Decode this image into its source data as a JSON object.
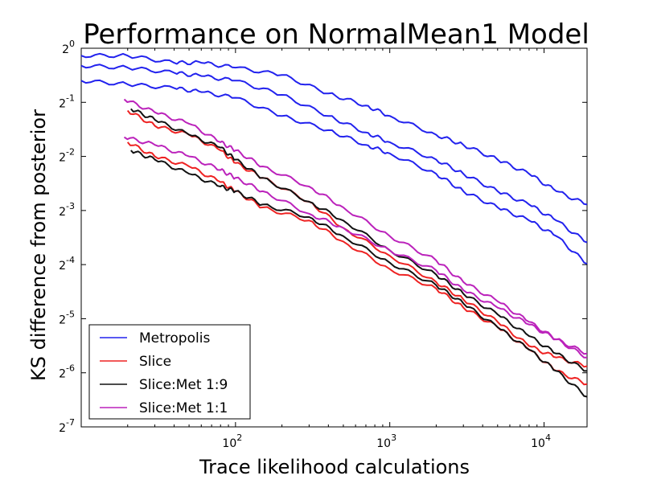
{
  "chart_data": {
    "type": "line",
    "title": "Performance on NormalMean1 Model",
    "xlabel": "Trace likelihood calculations",
    "ylabel": "KS difference from posterior",
    "xscale": "log10",
    "yscale": "log2",
    "xlim": [
      10,
      19000
    ],
    "ylim": [
      0.0078125,
      1
    ],
    "grid": false,
    "legend_position": "lower-left",
    "x_ticks": [
      {
        "base": "10",
        "exp": "2"
      },
      {
        "base": "10",
        "exp": "3"
      },
      {
        "base": "10",
        "exp": "4"
      }
    ],
    "y_ticks": [
      {
        "base": "2",
        "exp": "0"
      },
      {
        "base": "2",
        "exp": "-1"
      },
      {
        "base": "2",
        "exp": "-2"
      },
      {
        "base": "2",
        "exp": "-3"
      },
      {
        "base": "2",
        "exp": "-4"
      },
      {
        "base": "2",
        "exp": "-5"
      },
      {
        "base": "2",
        "exp": "-6"
      },
      {
        "base": "2",
        "exp": "-7"
      }
    ],
    "legend": [
      {
        "name": "Metropolis",
        "color": "#2222ee"
      },
      {
        "name": "Slice",
        "color": "#ee2222"
      },
      {
        "name": "Slice:Met 1:9",
        "color": "#111111"
      },
      {
        "name": "Slice:Met 1:1",
        "color": "#bb22bb"
      }
    ],
    "series": [
      {
        "name": "Metropolis",
        "color": "#2222ee",
        "x": [
          10,
          20,
          40,
          60,
          100,
          200,
          400,
          700,
          1000,
          2000,
          3000,
          5000,
          8000,
          12000,
          19000
        ],
        "y": [
          0.91,
          0.91,
          0.83,
          0.83,
          0.78,
          0.71,
          0.56,
          0.48,
          0.42,
          0.33,
          0.29,
          0.24,
          0.2,
          0.16,
          0.135
        ]
      },
      {
        "name": "Metropolis",
        "color": "#2222ee",
        "x": [
          10,
          20,
          40,
          60,
          100,
          200,
          400,
          700,
          1000,
          2000,
          3000,
          5000,
          8000,
          12000,
          19000
        ],
        "y": [
          0.8,
          0.78,
          0.73,
          0.7,
          0.66,
          0.55,
          0.42,
          0.34,
          0.3,
          0.24,
          0.2,
          0.16,
          0.135,
          0.11,
          0.083
        ]
      },
      {
        "name": "Metropolis",
        "color": "#2222ee",
        "x": [
          10,
          20,
          40,
          60,
          100,
          200,
          400,
          700,
          1000,
          2000,
          3000,
          5000,
          8000,
          12000,
          19000
        ],
        "y": [
          0.66,
          0.63,
          0.6,
          0.57,
          0.53,
          0.42,
          0.35,
          0.29,
          0.26,
          0.2,
          0.16,
          0.13,
          0.11,
          0.09,
          0.063
        ]
      },
      {
        "name": "Slice",
        "color": "#ee2222",
        "x": [
          20,
          30,
          50,
          80,
          100,
          150,
          300,
          500,
          1000,
          2000,
          3000,
          5000,
          8000,
          12000,
          19000
        ],
        "y": [
          0.45,
          0.37,
          0.33,
          0.27,
          0.23,
          0.19,
          0.14,
          0.1,
          0.07,
          0.05,
          0.04,
          0.03,
          0.022,
          0.019,
          0.017
        ]
      },
      {
        "name": "Slice",
        "color": "#ee2222",
        "x": [
          20,
          30,
          50,
          80,
          100,
          150,
          300,
          500,
          1000,
          2000,
          3000,
          5000,
          8000,
          12000,
          19000
        ],
        "y": [
          0.3,
          0.25,
          0.22,
          0.18,
          0.16,
          0.13,
          0.11,
          0.084,
          0.059,
          0.046,
          0.036,
          0.028,
          0.021,
          0.016,
          0.0135
        ]
      },
      {
        "name": "Slice:Met 1:9",
        "color": "#111111",
        "x": [
          21,
          30,
          50,
          80,
          100,
          150,
          300,
          500,
          1000,
          2000,
          3000,
          5000,
          8000,
          12000,
          19000
        ],
        "y": [
          0.46,
          0.4,
          0.33,
          0.28,
          0.24,
          0.19,
          0.14,
          0.11,
          0.075,
          0.055,
          0.043,
          0.033,
          0.025,
          0.02,
          0.016
        ]
      },
      {
        "name": "Slice:Met 1:9",
        "color": "#111111",
        "x": [
          21,
          30,
          50,
          80,
          100,
          150,
          300,
          500,
          1000,
          2000,
          3000,
          5000,
          8000,
          12000,
          19000
        ],
        "y": [
          0.27,
          0.24,
          0.2,
          0.17,
          0.16,
          0.135,
          0.115,
          0.09,
          0.064,
          0.048,
          0.038,
          0.028,
          0.021,
          0.016,
          0.0115
        ]
      },
      {
        "name": "Slice:Met 1:1",
        "color": "#bb22bb",
        "x": [
          19,
          30,
          50,
          80,
          100,
          150,
          300,
          500,
          1000,
          2000,
          3000,
          5000,
          8000,
          12000,
          19000
        ],
        "y": [
          0.52,
          0.44,
          0.38,
          0.3,
          0.27,
          0.22,
          0.17,
          0.13,
          0.09,
          0.066,
          0.05,
          0.039,
          0.03,
          0.024,
          0.02
        ]
      },
      {
        "name": "Slice:Met 1:1",
        "color": "#bb22bb",
        "x": [
          19,
          30,
          50,
          80,
          100,
          150,
          300,
          500,
          1000,
          2000,
          3000,
          5000,
          8000,
          12000,
          19000
        ],
        "y": [
          0.32,
          0.29,
          0.25,
          0.21,
          0.19,
          0.16,
          0.12,
          0.1,
          0.075,
          0.058,
          0.045,
          0.036,
          0.029,
          0.024,
          0.019
        ]
      }
    ]
  }
}
